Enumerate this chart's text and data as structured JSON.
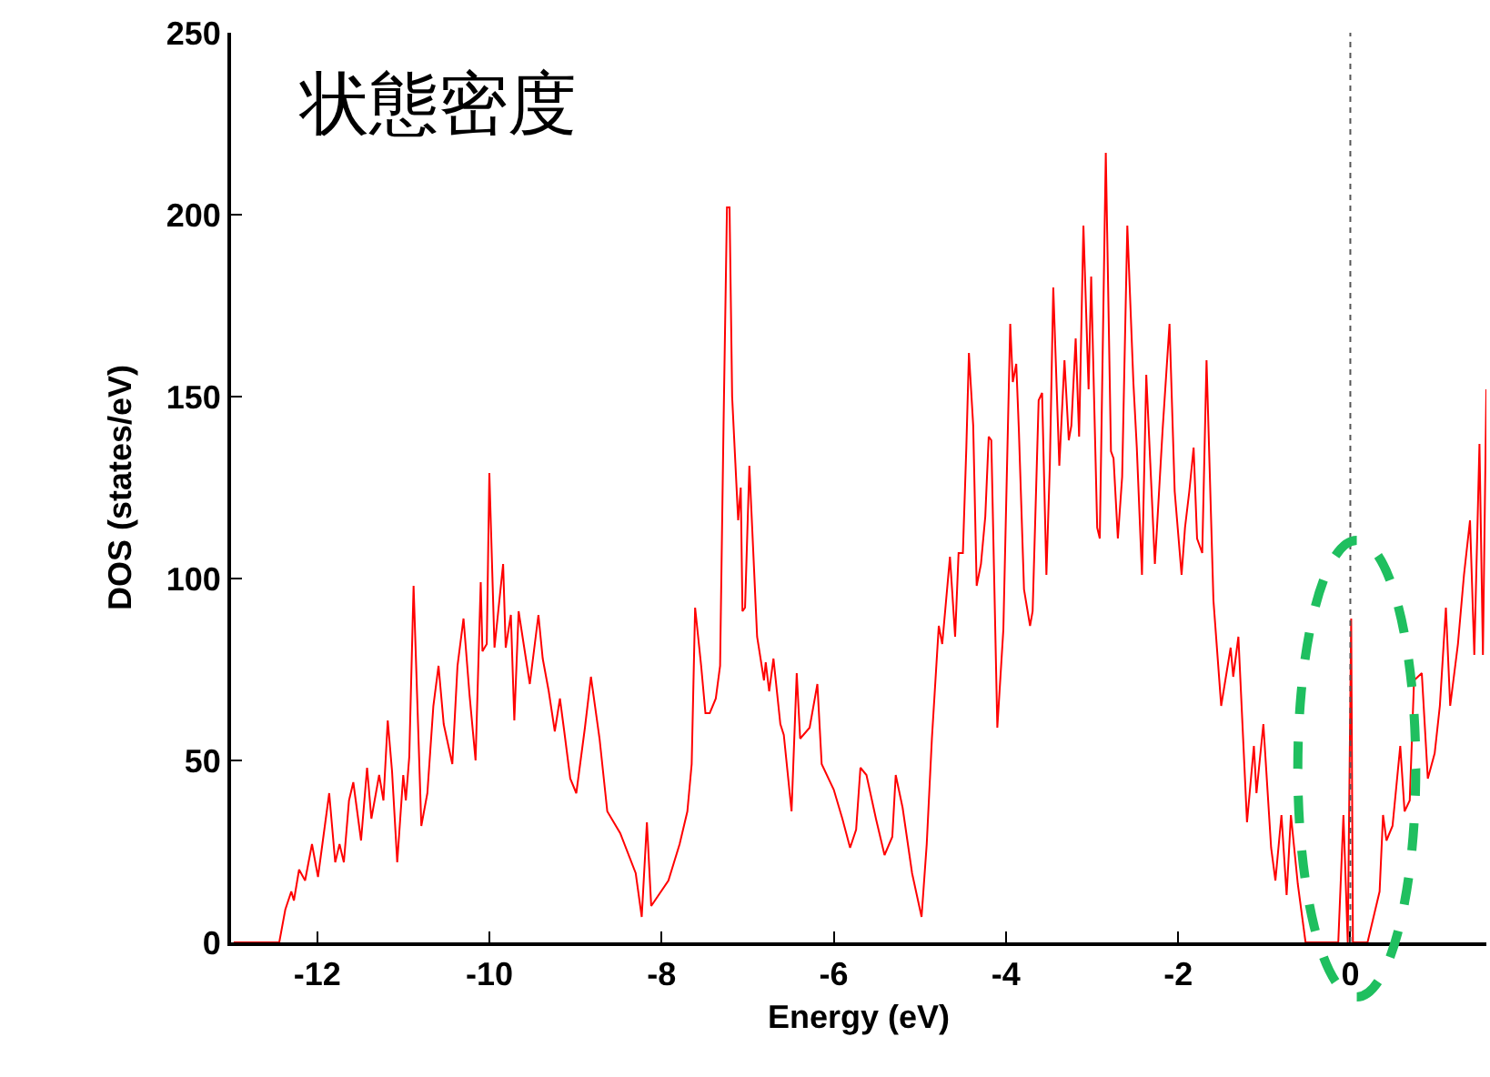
{
  "chart_data": {
    "type": "line",
    "title": "状態密度",
    "xlabel": "Energy (eV)",
    "ylabel": "DOS (states/eV)",
    "xlim": [
      -13,
      1.58
    ],
    "ylim": [
      0,
      250
    ],
    "xticks": [
      -12,
      -10,
      -8,
      -6,
      -4,
      -2,
      0
    ],
    "yticks": [
      0,
      50,
      100,
      150,
      200,
      250
    ],
    "marker": "none",
    "line_style": "solid",
    "ref_lines": [
      {
        "axis": "x",
        "value": 0,
        "label": null,
        "color": "#555555",
        "line_style": "dotted"
      }
    ],
    "series": [
      {
        "color": "#ff0000",
        "x": [
          -12.97,
          -12.44,
          -12.37,
          -12.3,
          -12.27,
          -12.21,
          -12.14,
          -12.06,
          -11.99,
          -11.86,
          -11.79,
          -11.74,
          -11.69,
          -11.63,
          -11.58,
          -11.49,
          -11.42,
          -11.37,
          -11.28,
          -11.23,
          -11.18,
          -11.13,
          -11.07,
          -11.0,
          -10.97,
          -10.93,
          -10.88,
          -10.79,
          -10.72,
          -10.65,
          -10.59,
          -10.53,
          -10.43,
          -10.37,
          -10.3,
          -10.23,
          -10.16,
          -10.1,
          -10.08,
          -10.03,
          -10.0,
          -9.94,
          -9.84,
          -9.81,
          -9.75,
          -9.71,
          -9.66,
          -9.53,
          -9.43,
          -9.38,
          -9.31,
          -9.24,
          -9.18,
          -9.13,
          -9.06,
          -8.99,
          -8.89,
          -8.82,
          -8.72,
          -8.63,
          -8.48,
          -8.3,
          -8.23,
          -8.17,
          -8.12,
          -7.92,
          -7.79,
          -7.7,
          -7.65,
          -7.61,
          -7.54,
          -7.49,
          -7.44,
          -7.37,
          -7.32,
          -7.28,
          -7.24,
          -7.21,
          -7.18,
          -7.11,
          -7.08,
          -7.06,
          -7.03,
          -6.98,
          -6.89,
          -6.81,
          -6.79,
          -6.75,
          -6.7,
          -6.62,
          -6.58,
          -6.49,
          -6.43,
          -6.39,
          -6.28,
          -6.19,
          -6.14,
          -6.0,
          -5.9,
          -5.81,
          -5.74,
          -5.69,
          -5.62,
          -5.51,
          -5.41,
          -5.32,
          -5.28,
          -5.2,
          -5.09,
          -4.98,
          -4.92,
          -4.86,
          -4.78,
          -4.74,
          -4.65,
          -4.59,
          -4.55,
          -4.5,
          -4.46,
          -4.43,
          -4.38,
          -4.34,
          -4.29,
          -4.24,
          -4.2,
          -4.17,
          -4.1,
          -4.03,
          -3.95,
          -3.92,
          -3.88,
          -3.85,
          -3.79,
          -3.72,
          -3.69,
          -3.62,
          -3.58,
          -3.53,
          -3.49,
          -3.45,
          -3.38,
          -3.32,
          -3.27,
          -3.24,
          -3.19,
          -3.15,
          -3.1,
          -3.04,
          -3.01,
          -2.94,
          -2.91,
          -2.84,
          -2.78,
          -2.75,
          -2.7,
          -2.65,
          -2.59,
          -2.52,
          -2.48,
          -2.42,
          -2.37,
          -2.32,
          -2.27,
          -2.18,
          -2.1,
          -2.04,
          -1.96,
          -1.92,
          -1.87,
          -1.82,
          -1.78,
          -1.72,
          -1.67,
          -1.59,
          -1.5,
          -1.39,
          -1.36,
          -1.3,
          -1.2,
          -1.12,
          -1.09,
          -1.01,
          -0.92,
          -0.87,
          -0.8,
          -0.74,
          -0.69,
          -0.61,
          -0.52,
          -0.14,
          -0.08,
          -0.03,
          0.01,
          0.03,
          0.2,
          0.34,
          0.38,
          0.42,
          0.49,
          0.58,
          0.63,
          0.69,
          0.74,
          0.83,
          0.9,
          0.98,
          1.04,
          1.11,
          1.16,
          1.25,
          1.32,
          1.39,
          1.44,
          1.5,
          1.54,
          1.58
        ],
        "values": [
          0,
          0,
          9,
          14,
          11.5,
          20,
          17,
          27,
          18,
          41,
          22,
          27,
          22,
          39,
          44,
          28,
          48,
          34,
          46,
          39,
          61,
          47,
          22,
          46,
          39,
          51,
          98,
          32,
          41,
          65,
          76,
          60,
          49,
          76,
          89,
          68,
          50,
          99,
          80,
          82,
          129,
          81,
          104,
          81,
          90,
          61,
          91,
          71,
          90,
          78,
          69,
          58,
          67,
          58,
          45,
          41,
          59,
          73,
          56,
          36,
          30,
          19,
          7,
          33,
          10,
          17,
          27,
          36,
          49,
          92,
          76,
          63,
          63,
          67,
          76,
          142,
          202,
          202,
          150,
          116,
          125,
          91,
          92,
          131,
          84,
          72,
          77,
          69,
          78,
          60,
          57,
          36,
          74,
          56,
          59,
          71,
          49,
          42,
          34,
          26,
          31,
          48,
          46,
          34,
          24,
          29,
          46,
          37,
          19,
          7,
          27,
          56,
          87,
          82,
          106,
          84,
          107,
          107,
          136,
          162,
          142,
          98,
          104,
          117,
          139,
          138,
          59,
          86,
          170,
          154,
          159,
          141,
          97,
          87,
          91,
          149,
          151,
          101,
          131,
          180,
          131,
          160,
          138,
          142,
          166,
          139,
          197,
          152,
          183,
          114,
          111,
          217,
          135,
          133,
          111,
          128,
          197,
          154,
          136,
          101,
          156,
          130,
          104,
          141,
          170,
          124,
          101,
          114,
          124,
          136,
          111,
          107,
          160,
          94,
          65,
          81,
          73,
          84,
          33,
          54,
          41,
          60,
          26,
          17,
          35,
          13,
          35,
          16,
          0,
          0,
          35,
          0,
          89,
          0,
          0,
          14,
          35,
          28,
          32,
          54,
          36,
          39,
          72,
          74,
          45,
          52,
          65,
          92,
          65,
          82,
          101,
          116,
          79,
          137,
          79,
          152
        ]
      }
    ]
  }
}
